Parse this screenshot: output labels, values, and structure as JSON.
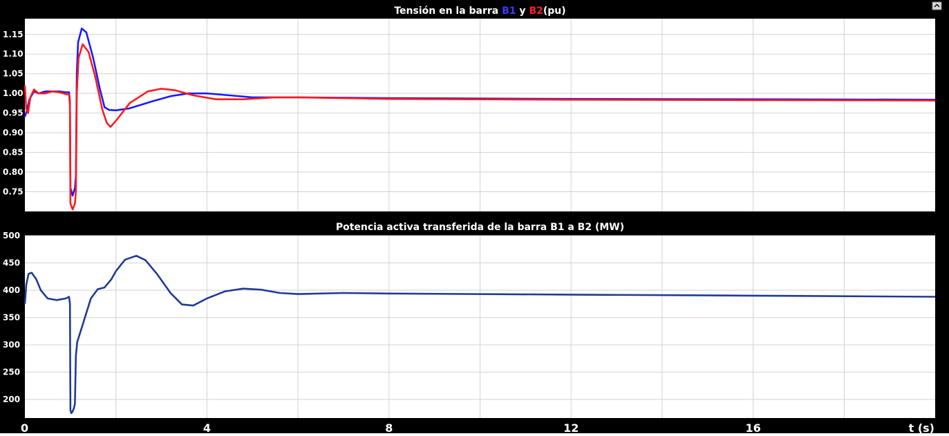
{
  "chart_data": [
    {
      "type": "line",
      "title_parts": [
        {
          "text": "Tensión en la barra ",
          "color": "#ffffff"
        },
        {
          "text": "B1",
          "color": "#3b3bff"
        },
        {
          "text": " y ",
          "color": "#ffffff"
        },
        {
          "text": "B2",
          "color": "#ff2020"
        },
        {
          "text": "(pu)",
          "color": "#ffffff"
        }
      ],
      "xlim": [
        0,
        20
      ],
      "ylim": [
        0.7,
        1.19
      ],
      "yticks": [
        0.75,
        0.8,
        0.85,
        0.9,
        0.95,
        1.0,
        1.05,
        1.1,
        1.15
      ],
      "ytick_labels": [
        "0.75",
        "0.80",
        "0.85",
        "0.90",
        "0.95",
        "1.00",
        "1.05",
        "1.10",
        "1.15"
      ],
      "grid": true,
      "series": [
        {
          "color": "#1a1aff",
          "points": [
            [
              0,
              0.94
            ],
            [
              0.05,
              0.96
            ],
            [
              0.1,
              0.985
            ],
            [
              0.2,
              1.005
            ],
            [
              0.3,
              1.0
            ],
            [
              0.45,
              1.005
            ],
            [
              0.6,
              1.005
            ],
            [
              0.75,
              1.005
            ],
            [
              0.9,
              1.003
            ],
            [
              0.97,
              1.003
            ],
            [
              0.99,
              0.98
            ],
            [
              1.0,
              0.76
            ],
            [
              1.05,
              0.74
            ],
            [
              1.1,
              0.76
            ],
            [
              1.12,
              0.79
            ],
            [
              1.14,
              1.05
            ],
            [
              1.17,
              1.13
            ],
            [
              1.25,
              1.165
            ],
            [
              1.35,
              1.155
            ],
            [
              1.5,
              1.09
            ],
            [
              1.65,
              1.01
            ],
            [
              1.75,
              0.965
            ],
            [
              1.85,
              0.958
            ],
            [
              2.0,
              0.957
            ],
            [
              2.3,
              0.962
            ],
            [
              2.8,
              0.98
            ],
            [
              3.2,
              0.993
            ],
            [
              3.6,
              1.0
            ],
            [
              4.0,
              1.0
            ],
            [
              4.5,
              0.995
            ],
            [
              5.0,
              0.99
            ],
            [
              6.0,
              0.99
            ],
            [
              8.0,
              0.988
            ],
            [
              12.0,
              0.986
            ],
            [
              16.0,
              0.985
            ],
            [
              20.0,
              0.984
            ]
          ]
        },
        {
          "color": "#ff1a1a",
          "points": [
            [
              0,
              1.02
            ],
            [
              0.03,
              0.96
            ],
            [
              0.07,
              0.95
            ],
            [
              0.12,
              0.99
            ],
            [
              0.2,
              1.01
            ],
            [
              0.3,
              1.0
            ],
            [
              0.45,
              1.0
            ],
            [
              0.6,
              1.005
            ],
            [
              0.75,
              1.003
            ],
            [
              0.9,
              0.998
            ],
            [
              0.97,
              0.997
            ],
            [
              0.99,
              0.97
            ],
            [
              1.0,
              0.72
            ],
            [
              1.05,
              0.705
            ],
            [
              1.1,
              0.72
            ],
            [
              1.12,
              0.75
            ],
            [
              1.14,
              1.0
            ],
            [
              1.18,
              1.09
            ],
            [
              1.27,
              1.125
            ],
            [
              1.4,
              1.105
            ],
            [
              1.55,
              1.04
            ],
            [
              1.7,
              0.96
            ],
            [
              1.8,
              0.925
            ],
            [
              1.88,
              0.915
            ],
            [
              2.0,
              0.93
            ],
            [
              2.3,
              0.975
            ],
            [
              2.7,
              1.005
            ],
            [
              3.0,
              1.012
            ],
            [
              3.3,
              1.008
            ],
            [
              3.7,
              0.995
            ],
            [
              4.2,
              0.985
            ],
            [
              4.8,
              0.985
            ],
            [
              5.5,
              0.99
            ],
            [
              6.0,
              0.99
            ],
            [
              8.0,
              0.986
            ],
            [
              12.0,
              0.984
            ],
            [
              16.0,
              0.983
            ],
            [
              20.0,
              0.982
            ]
          ]
        }
      ]
    },
    {
      "type": "line",
      "title": "Potencia activa transferida de la barra B1 a B2 (MW)",
      "xlim": [
        0,
        20
      ],
      "ylim": [
        166,
        500
      ],
      "yticks": [
        200,
        250,
        300,
        350,
        400,
        450,
        500
      ],
      "ytick_labels": [
        "200",
        "250",
        "300",
        "350",
        "400",
        "450",
        "500"
      ],
      "xticks": [
        0,
        4,
        8,
        12,
        16
      ],
      "xtick_labels": [
        "0",
        "4",
        "8",
        "12",
        "16"
      ],
      "xlabel": "t (s)",
      "grid": true,
      "series": [
        {
          "color": "#1f3a93",
          "points": [
            [
              0,
              375
            ],
            [
              0.03,
              410
            ],
            [
              0.08,
              430
            ],
            [
              0.15,
              432
            ],
            [
              0.25,
              420
            ],
            [
              0.35,
              400
            ],
            [
              0.5,
              385
            ],
            [
              0.7,
              382
            ],
            [
              0.9,
              385
            ],
            [
              0.97,
              388
            ],
            [
              0.99,
              375
            ],
            [
              1.0,
              180
            ],
            [
              1.02,
              175
            ],
            [
              1.05,
              178
            ],
            [
              1.08,
              185
            ],
            [
              1.1,
              192
            ],
            [
              1.12,
              280
            ],
            [
              1.15,
              305
            ],
            [
              1.3,
              345
            ],
            [
              1.45,
              385
            ],
            [
              1.6,
              402
            ],
            [
              1.75,
              405
            ],
            [
              1.9,
              420
            ],
            [
              2.0,
              435
            ],
            [
              2.2,
              456
            ],
            [
              2.45,
              463
            ],
            [
              2.65,
              455
            ],
            [
              2.9,
              430
            ],
            [
              3.2,
              395
            ],
            [
              3.45,
              374
            ],
            [
              3.7,
              372
            ],
            [
              4.0,
              385
            ],
            [
              4.4,
              398
            ],
            [
              4.8,
              403
            ],
            [
              5.2,
              401
            ],
            [
              5.6,
              395
            ],
            [
              6.0,
              393
            ],
            [
              7.0,
              395
            ],
            [
              8.0,
              394
            ],
            [
              12.0,
              392
            ],
            [
              16.0,
              390
            ],
            [
              20.0,
              388
            ]
          ]
        }
      ]
    }
  ]
}
